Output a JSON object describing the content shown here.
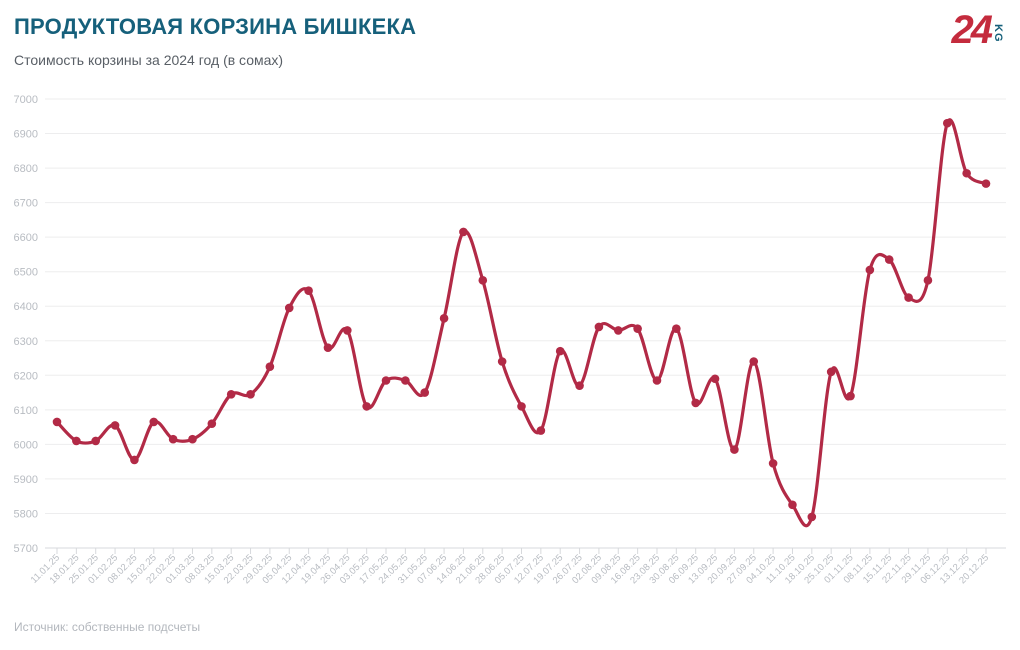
{
  "header": {
    "title": "ПРОДУКТОВАЯ КОРЗИНА БИШКЕКА",
    "subtitle": "Стоимость корзины за 2024 год (в сомах)",
    "logo": {
      "number": "24",
      "suffix": "KG"
    }
  },
  "footer": {
    "source": "Источник: собственные подсчеты"
  },
  "colors": {
    "title": "#16607b",
    "subtitle": "#595f66",
    "logo_red": "#c42b3d",
    "logo_teal": "#16607b",
    "axis_text": "#b8bcc2",
    "gridline": "#ededee",
    "axis_line": "#d7d9dc",
    "line": "#b22a46"
  },
  "chart_data": {
    "type": "line",
    "title": "ПРОДУКТОВАЯ КОРЗИНА БИШКЕКА",
    "subtitle": "Стоимость корзины за 2024 год (в сомах)",
    "xlabel": "",
    "ylabel": "",
    "ylim": [
      5700,
      7000
    ],
    "ytick_step": 100,
    "grid": "horizontal",
    "legend_position": "none",
    "line_color": "#b22a46",
    "point_color": "#b22a46",
    "x": [
      "11.01.25",
      "18.01.25",
      "25.01.25",
      "01.02.25",
      "08.02.25",
      "15.02.25",
      "22.02.25",
      "01.03.25",
      "08.03.25",
      "15.03.25",
      "22.03.25",
      "29.03.25",
      "05.04.25",
      "12.04.25",
      "19.04.25",
      "26.04.25",
      "03.05.25",
      "17.05.25",
      "24.05.25",
      "31.05.25",
      "07.06.25",
      "14.06.25",
      "21.06.25",
      "28.06.25",
      "05.07.25",
      "12.07.25",
      "19.07.25",
      "26.07.25",
      "02.08.25",
      "09.08.25",
      "16.08.25",
      "23.08.25",
      "30.08.25",
      "06.09.25",
      "13.09.25",
      "20.09.25",
      "27.09.25",
      "04.10.25",
      "11.10.25",
      "18.10.25",
      "25.10.25",
      "01.11.25",
      "08.11.25",
      "15.11.25",
      "22.11.25",
      "29.11.25",
      "06.12.25",
      "13.12.25",
      "20.12.25"
    ],
    "series": [
      {
        "name": "Стоимость корзины (сом)",
        "values": [
          6065,
          6010,
          6010,
          6055,
          5955,
          6065,
          6015,
          6015,
          6060,
          6145,
          6145,
          6225,
          6395,
          6445,
          6280,
          6330,
          6110,
          6185,
          6185,
          6150,
          6365,
          6615,
          6475,
          6240,
          6110,
          6040,
          6270,
          6170,
          6340,
          6330,
          6335,
          6185,
          6335,
          6120,
          6190,
          5985,
          6240,
          5945,
          5825,
          5790,
          6210,
          6140,
          6505,
          6535,
          6425,
          6475,
          6930,
          6785,
          6755
        ]
      }
    ]
  }
}
